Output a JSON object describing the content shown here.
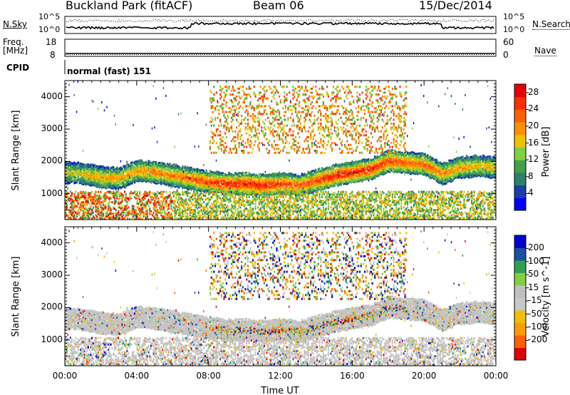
{
  "header": {
    "station": "Buckland Park (fitACF)",
    "beam": "Beam 06",
    "date": "15/Dec/2014"
  },
  "top_panels": {
    "nsky_label": "N.Sky",
    "nsearch_label": "N.Search",
    "nsky_ticks": [
      "10^5",
      "10^0"
    ],
    "nsearch_ticks": [
      "10^5",
      "10^0"
    ],
    "freq_label_1": "Freq.",
    "freq_label_2": "[MHz]",
    "freq_ticks": [
      "18",
      "8"
    ],
    "nave_label": "Nave",
    "nave_ticks": [
      "60",
      "0"
    ],
    "cpid_label": "CPID",
    "cpid_value": "normal (fast) 151"
  },
  "colors": {
    "power_scale": [
      "#0000ff",
      "#1a3ea8",
      "#2f7f6e",
      "#44a04a",
      "#7fd13f",
      "#f0c000",
      "#ff9000",
      "#ff6000",
      "#ff3000",
      "#e80000"
    ],
    "velocity_scale": [
      "#e00000",
      "#ff6000",
      "#ff9a00",
      "#f0c000",
      "#c8c8c8",
      "#c0c0c0",
      "#80d040",
      "#30a050",
      "#1a50a0",
      "#0000d0"
    ],
    "ground_scatter": "#c4c4c4"
  },
  "chart_data": [
    {
      "type": "heatmap",
      "title": "",
      "xlabel": "Time UT",
      "ylabel": "Slant Range [km]",
      "x_ticks": [
        "00:00",
        "04:00",
        "08:00",
        "12:00",
        "16:00",
        "20:00",
        "00:00"
      ],
      "y_ticks": [
        "1000",
        "2000",
        "3000",
        "4000"
      ],
      "xlim_hours": [
        0,
        24
      ],
      "ylim_km": [
        200,
        4500
      ],
      "colorbar_label": "Power [dB]",
      "colorbar_ticks": [
        "28",
        "24",
        "20",
        "16",
        "12",
        "8",
        "4"
      ],
      "colorbar_range": [
        0,
        30
      ],
      "main_echo_band": {
        "hours": [
          0,
          1,
          2,
          3,
          4,
          5,
          6,
          7,
          8,
          9,
          10,
          11,
          12,
          13,
          14,
          15,
          16,
          17,
          18,
          19,
          20,
          21,
          22,
          23,
          24
        ],
        "range_km": [
          1700,
          1650,
          1550,
          1500,
          1750,
          1700,
          1600,
          1500,
          1400,
          1350,
          1350,
          1300,
          1350,
          1300,
          1450,
          1600,
          1700,
          1800,
          2050,
          2000,
          1950,
          1650,
          1850,
          1900,
          1850
        ],
        "power_db": [
          16,
          18,
          20,
          20,
          20,
          22,
          22,
          24,
          26,
          28,
          28,
          28,
          26,
          24,
          26,
          28,
          28,
          28,
          26,
          24,
          24,
          22,
          20,
          18,
          18
        ]
      }
    },
    {
      "type": "heatmap",
      "title": "",
      "xlabel": "Time UT",
      "ylabel": "Slant Range [km]",
      "x_ticks": [
        "00:00",
        "04:00",
        "08:00",
        "12:00",
        "16:00",
        "20:00",
        "00:00"
      ],
      "y_ticks": [
        "1000",
        "2000",
        "3000",
        "4000"
      ],
      "xlim_hours": [
        0,
        24
      ],
      "ylim_km": [
        200,
        4500
      ],
      "colorbar_label": "Velocity [m s^-1]",
      "colorbar_ticks": [
        "200",
        "100",
        "50",
        "15",
        "-15",
        "-50",
        "-100",
        "-200"
      ],
      "colorbar_range": [
        -250,
        250
      ]
    }
  ]
}
